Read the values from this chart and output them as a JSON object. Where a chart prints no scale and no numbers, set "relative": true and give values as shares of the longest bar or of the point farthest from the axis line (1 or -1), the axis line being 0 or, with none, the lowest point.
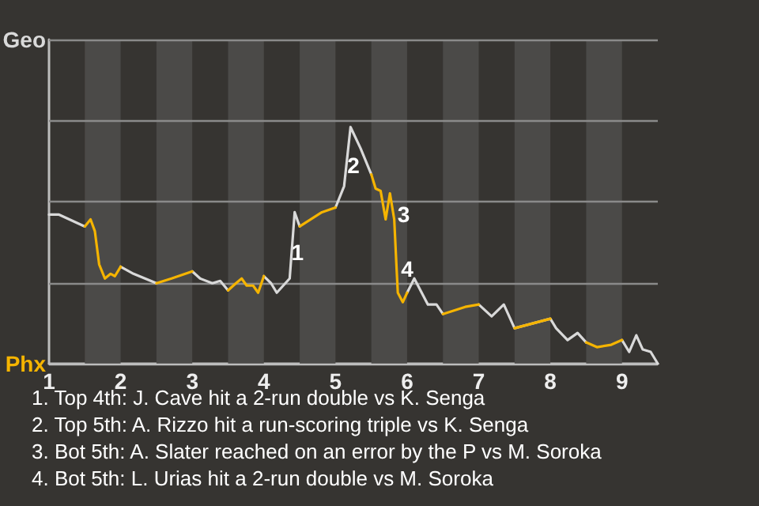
{
  "chart_data": {
    "type": "line",
    "relative": true,
    "x": [
      1,
      1.14,
      1.5,
      1.58,
      1.64,
      1.7,
      1.78,
      1.86,
      1.92,
      2,
      2.18,
      2.5,
      2.71,
      3,
      3.11,
      3.28,
      3.39,
      3.5,
      3.61,
      3.69,
      3.76,
      3.85,
      3.92,
      4,
      4.1,
      4.18,
      4.36,
      4.43,
      4.5,
      4.81,
      5,
      5.12,
      5.21,
      5.35,
      5.5,
      5.56,
      5.63,
      5.7,
      5.76,
      5.82,
      5.85,
      5.87,
      5.94,
      6,
      6.1,
      6.29,
      6.41,
      6.5,
      6.81,
      7,
      7.18,
      7.35,
      7.5,
      8,
      8.08,
      8.24,
      8.38,
      8.5,
      8.65,
      8.85,
      9,
      9.1,
      9.2,
      9.29,
      9.4,
      9.5
    ],
    "series": [
      {
        "color": "#d9d9d9",
        "values": [
          0.63,
          0.63,
          0.58,
          null,
          null,
          null,
          null,
          null,
          null,
          0.41,
          0.38,
          0.34,
          null,
          0.39,
          0.36,
          0.34,
          0.35,
          0.31,
          null,
          null,
          null,
          null,
          null,
          0.37,
          0.34,
          0.3,
          0.36,
          0.64,
          0.58,
          null,
          0.66,
          0.75,
          1,
          0.91,
          0.8,
          null,
          null,
          null,
          null,
          null,
          null,
          null,
          null,
          0.3,
          0.36,
          0.25,
          0.25,
          0.21,
          null,
          0.25,
          0.2,
          0.25,
          0.15,
          0.19,
          0.15,
          0.1,
          0.13,
          0.09,
          null,
          null,
          0.1,
          0.05,
          0.12,
          0.06,
          0.05,
          0
        ]
      },
      {
        "color": "#f5b400",
        "values": [
          null,
          null,
          0.58,
          0.61,
          0.56,
          0.42,
          0.36,
          0.38,
          0.37,
          0.41,
          null,
          0.34,
          0.36,
          0.39,
          null,
          null,
          null,
          0.31,
          0.34,
          0.36,
          0.33,
          0.33,
          0.3,
          0.37,
          null,
          null,
          null,
          null,
          0.58,
          0.64,
          0.66,
          null,
          null,
          null,
          0.8,
          0.74,
          0.73,
          0.61,
          0.72,
          0.61,
          0.42,
          0.3,
          0.26,
          0.3,
          null,
          null,
          null,
          0.21,
          0.24,
          0.25,
          null,
          null,
          0.15,
          0.19,
          null,
          null,
          null,
          0.09,
          0.07,
          0.08,
          0.1,
          null,
          null,
          null,
          null,
          null
        ]
      }
    ],
    "xlim": [
      1,
      9.5
    ],
    "xticks": [
      1,
      2,
      3,
      4,
      5,
      6,
      7,
      8,
      9
    ],
    "ref_lines": [
      {
        "axis": "y",
        "value": 0,
        "label": "Phx",
        "color": "#bdbdbd"
      },
      {
        "axis": "y",
        "value": 0.34,
        "color": "#8a8a8a"
      },
      {
        "axis": "y",
        "value": 0.69,
        "color": "#8a8a8a"
      },
      {
        "axis": "y",
        "value": 1.03,
        "color": "#8a8a8a"
      },
      {
        "axis": "y",
        "value": 1.37,
        "label": "Geo",
        "color": "#8a8a8a"
      }
    ],
    "bands": [
      {
        "axis": "x",
        "from": 1.5,
        "to": 2,
        "color": "#4b4a48"
      },
      {
        "axis": "x",
        "from": 2.5,
        "to": 3,
        "color": "#4b4a48"
      },
      {
        "axis": "x",
        "from": 3.5,
        "to": 4,
        "color": "#4b4a48"
      },
      {
        "axis": "x",
        "from": 4.5,
        "to": 5,
        "color": "#4b4a48"
      },
      {
        "axis": "x",
        "from": 5.5,
        "to": 6,
        "color": "#4b4a48"
      },
      {
        "axis": "x",
        "from": 6.5,
        "to": 7,
        "color": "#4b4a48"
      },
      {
        "axis": "x",
        "from": 7.5,
        "to": 8,
        "color": "#4b4a48"
      },
      {
        "axis": "x",
        "from": 8.5,
        "to": 9,
        "color": "#4b4a48"
      }
    ],
    "annotations": [
      {
        "text": "1",
        "x": 4.47,
        "y": 0.47
      },
      {
        "text": "2",
        "x": 5.25,
        "y": 0.84
      },
      {
        "text": "3",
        "x": 5.95,
        "y": 0.63
      },
      {
        "text": "4",
        "x": 6.0,
        "y": 0.4
      },
      "1. Top 4th: J. Cave hit a 2-run double vs K. Senga",
      "2. Top 5th: A. Rizzo hit a run-scoring triple vs K. Senga",
      "3. Bot 5th: A. Slater reached on an error by the P vs M. Soroka",
      "4. Bot 5th: L. Urias hit a 2-run double vs M. Soroka"
    ],
    "marker": "none",
    "line_style": "solid"
  }
}
